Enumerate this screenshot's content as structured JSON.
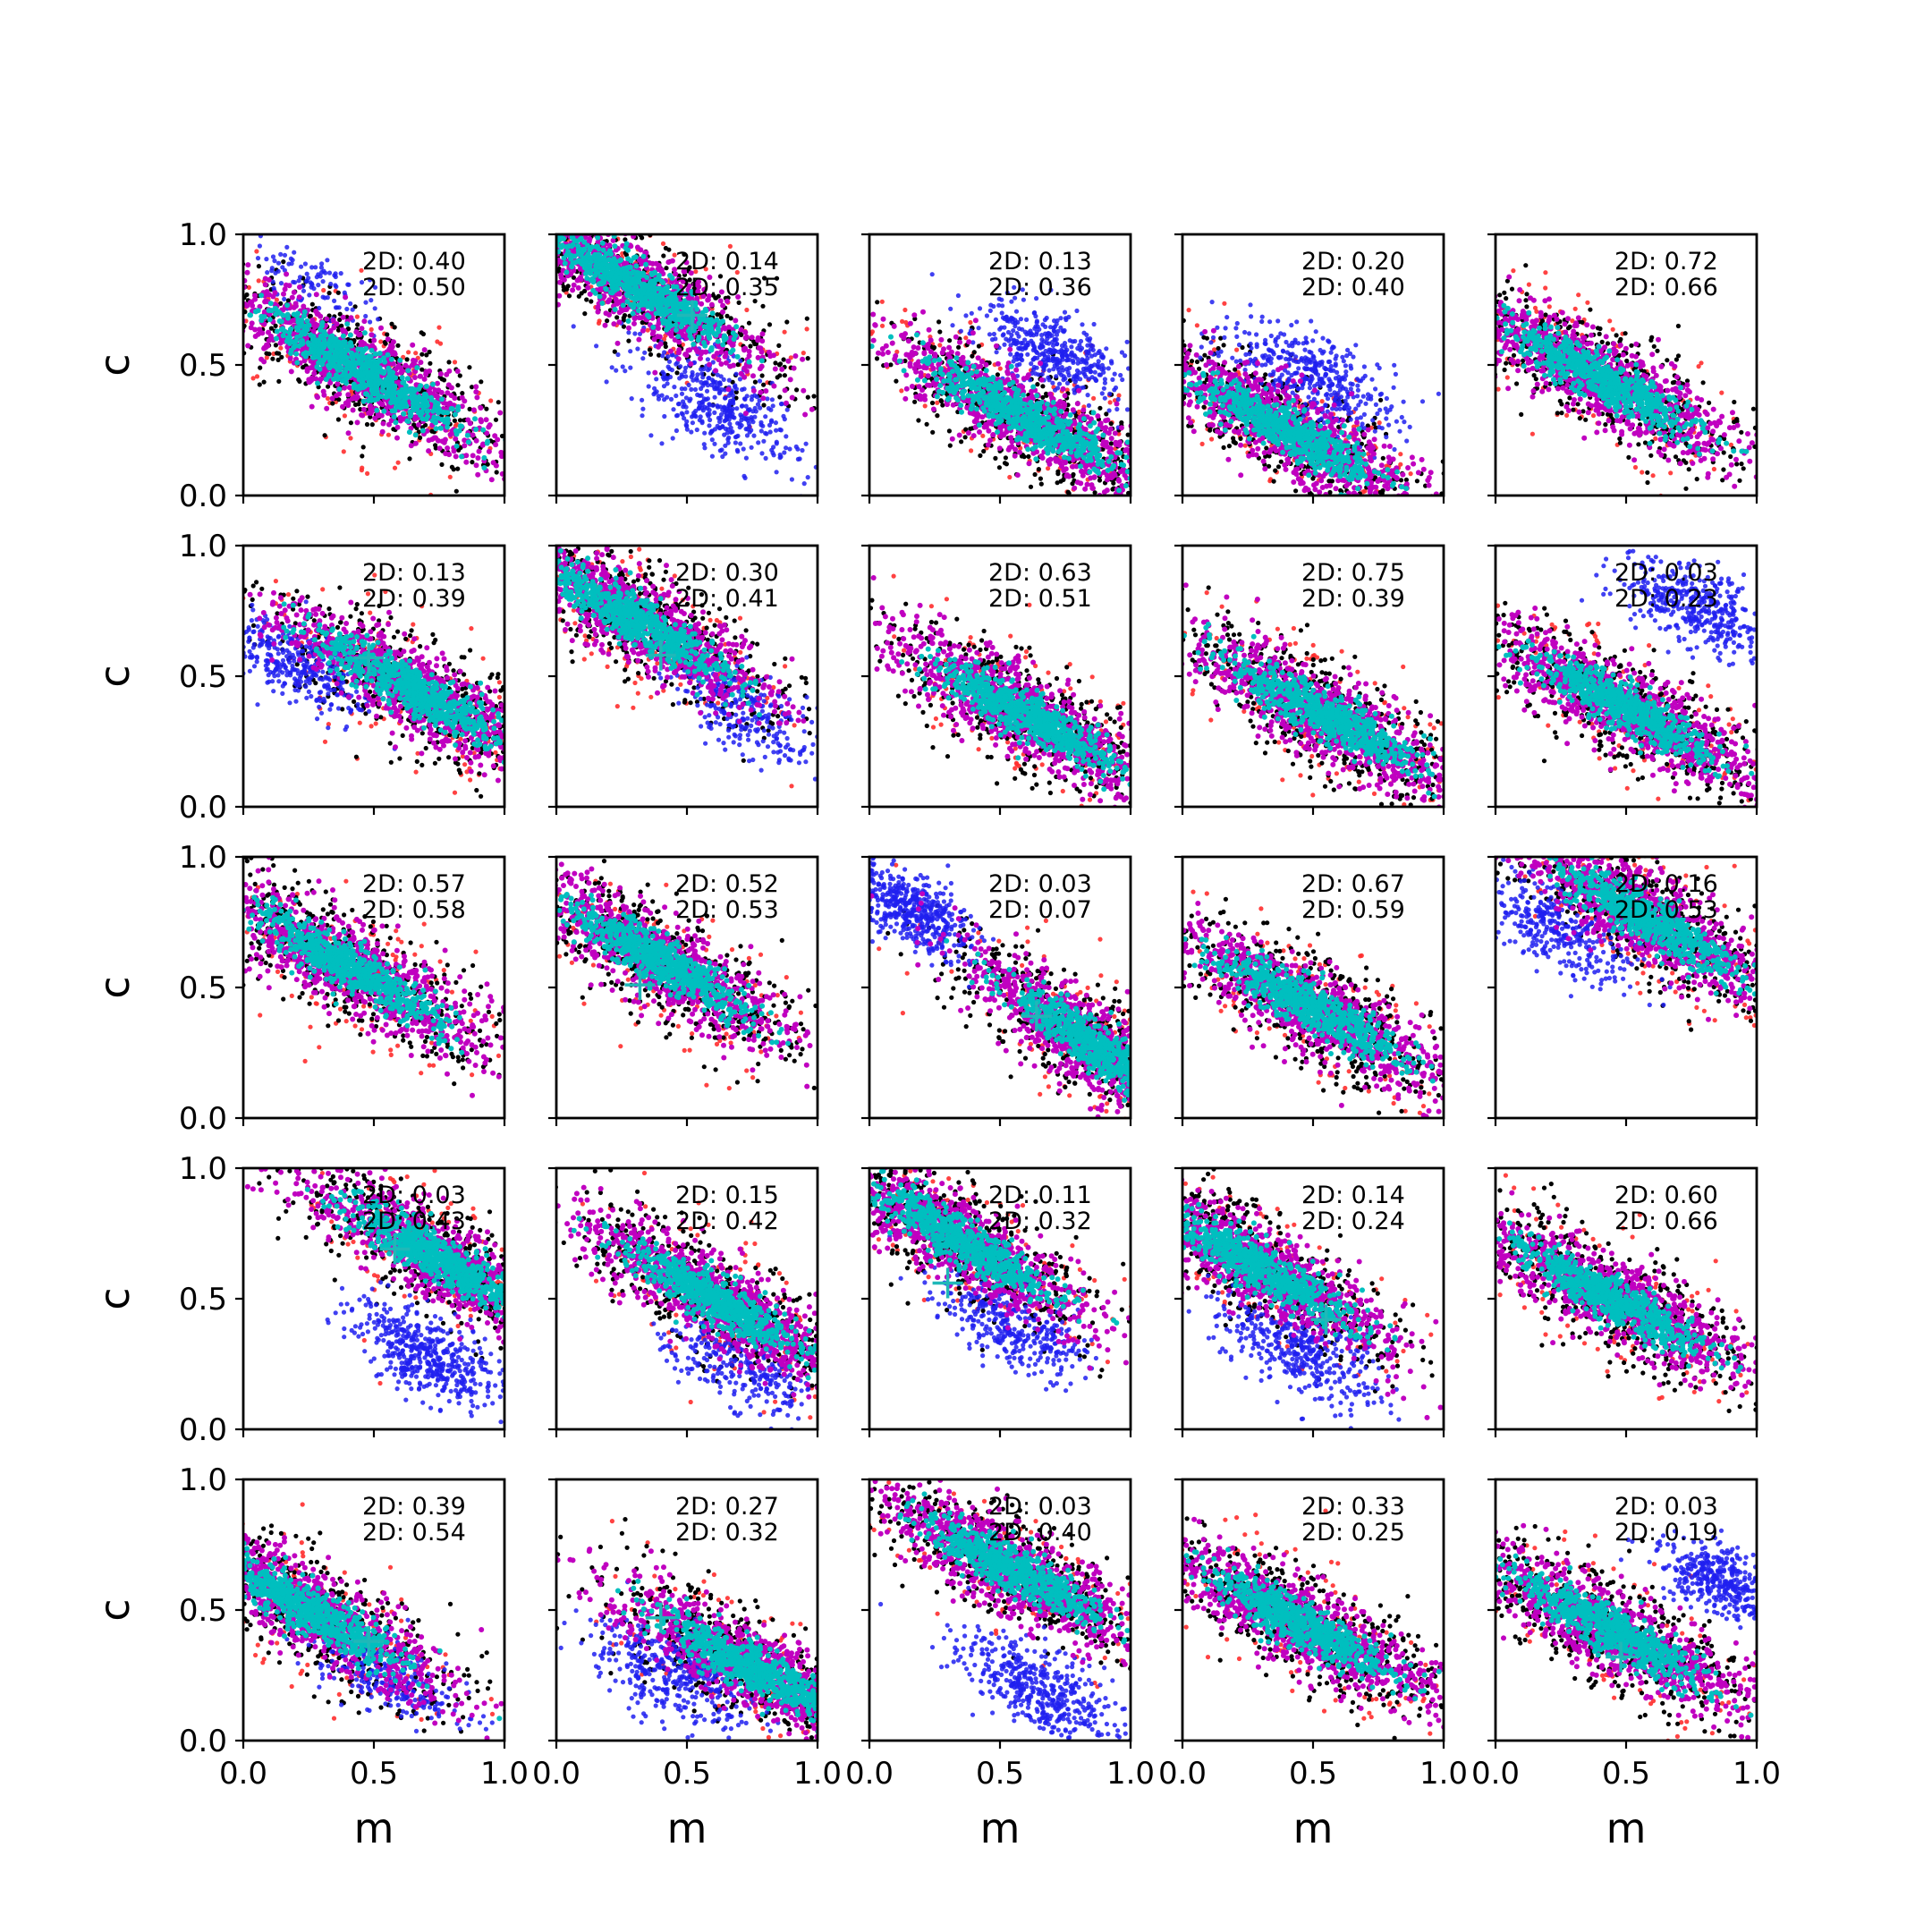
{
  "chart_data": {
    "type": "scatter",
    "layout": {
      "rows": 5,
      "cols": 5
    },
    "xlabel": "m",
    "ylabel": "c",
    "xlim": [
      0,
      1
    ],
    "ylim": [
      0,
      1
    ],
    "xticks": [
      "0.0",
      "0.5",
      "1.0"
    ],
    "yticks": [
      "0.0",
      "0.5",
      "1.0"
    ],
    "colors": {
      "red": "#ff2d2d",
      "black": "#000000",
      "blue": "#2020f0",
      "magenta": "#c000c0",
      "cyan": "#00bfbf",
      "marker": "#1fb8b8"
    },
    "note": "Each panel: scatter of (m, c) samples with a red outer layer, black band, magenta main cloud, cyan core, optional blue secondary cloud, and a cyan '+' marker.",
    "panels": [
      {
        "row": 0,
        "col": 0,
        "annot": [
          "2D: 0.40",
          "2D: 0.50"
        ],
        "main": {
          "cx": 0.45,
          "cy": 0.48,
          "slope": -0.6
        },
        "blue": {
          "cx": 0.3,
          "cy": 0.8,
          "n": 0.15,
          "spread": 0.06
        },
        "marker": null
      },
      {
        "row": 0,
        "col": 1,
        "annot": [
          "2D: 0.14",
          "2D: 0.35"
        ],
        "main": {
          "cx": 0.3,
          "cy": 0.8,
          "slope": -0.6
        },
        "blue": {
          "cx": 0.6,
          "cy": 0.35,
          "n": 0.6,
          "spread": 0.08
        },
        "marker": [
          0.52,
          0.69
        ]
      },
      {
        "row": 0,
        "col": 2,
        "annot": [
          "2D: 0.13",
          "2D: 0.36"
        ],
        "main": {
          "cx": 0.6,
          "cy": 0.3,
          "slope": -0.55
        },
        "blue": {
          "cx": 0.7,
          "cy": 0.55,
          "n": 0.6,
          "spread": 0.07
        },
        "marker": null
      },
      {
        "row": 0,
        "col": 3,
        "annot": [
          "2D: 0.20",
          "2D: 0.40"
        ],
        "main": {
          "cx": 0.4,
          "cy": 0.25,
          "slope": -0.55
        },
        "blue": {
          "cx": 0.5,
          "cy": 0.45,
          "n": 0.6,
          "spread": 0.08
        },
        "marker": null
      },
      {
        "row": 0,
        "col": 4,
        "annot": [
          "2D: 0.72",
          "2D: 0.66"
        ],
        "main": {
          "cx": 0.4,
          "cy": 0.45,
          "slope": -0.55
        },
        "blue": null,
        "marker": null
      },
      {
        "row": 1,
        "col": 0,
        "annot": [
          "2D: 0.13",
          "2D: 0.39"
        ],
        "main": {
          "cx": 0.65,
          "cy": 0.45,
          "slope": -0.55
        },
        "blue": {
          "cx": 0.2,
          "cy": 0.55,
          "n": 0.5,
          "spread": 0.07
        },
        "marker": [
          0.48,
          0.57
        ]
      },
      {
        "row": 1,
        "col": 1,
        "annot": [
          "2D: 0.30",
          "2D: 0.41"
        ],
        "main": {
          "cx": 0.3,
          "cy": 0.72,
          "slope": -0.6
        },
        "blue": {
          "cx": 0.75,
          "cy": 0.35,
          "n": 0.4,
          "spread": 0.07
        },
        "marker": [
          0.4,
          0.58
        ]
      },
      {
        "row": 1,
        "col": 2,
        "annot": [
          "2D: 0.63",
          "2D: 0.51"
        ],
        "main": {
          "cx": 0.6,
          "cy": 0.35,
          "slope": -0.55
        },
        "blue": null,
        "marker": null
      },
      {
        "row": 1,
        "col": 3,
        "annot": [
          "2D: 0.75",
          "2D: 0.39"
        ],
        "main": {
          "cx": 0.55,
          "cy": 0.35,
          "slope": -0.55
        },
        "blue": null,
        "marker": null
      },
      {
        "row": 1,
        "col": 4,
        "annot": [
          "2D: 0.03",
          "2D: 0.23"
        ],
        "main": {
          "cx": 0.5,
          "cy": 0.38,
          "slope": -0.55
        },
        "blue": {
          "cx": 0.8,
          "cy": 0.75,
          "n": 0.6,
          "spread": 0.07
        },
        "marker": null
      },
      {
        "row": 2,
        "col": 0,
        "annot": [
          "2D: 0.57",
          "2D: 0.58"
        ],
        "main": {
          "cx": 0.4,
          "cy": 0.58,
          "slope": -0.6
        },
        "blue": null,
        "marker": null
      },
      {
        "row": 2,
        "col": 1,
        "annot": [
          "2D: 0.52",
          "2D: 0.53"
        ],
        "main": {
          "cx": 0.4,
          "cy": 0.6,
          "slope": -0.6
        },
        "blue": null,
        "marker": [
          0.32,
          0.51
        ]
      },
      {
        "row": 2,
        "col": 2,
        "annot": [
          "2D: 0.03",
          "2D: 0.07"
        ],
        "main": {
          "cx": 0.85,
          "cy": 0.28,
          "slope": -0.7
        },
        "blue": {
          "cx": 0.15,
          "cy": 0.8,
          "n": 0.7,
          "spread": 0.06
        },
        "marker": [
          0.64,
          0.39
        ]
      },
      {
        "row": 2,
        "col": 3,
        "annot": [
          "2D: 0.67",
          "2D: 0.59"
        ],
        "main": {
          "cx": 0.5,
          "cy": 0.42,
          "slope": -0.55
        },
        "blue": null,
        "marker": null
      },
      {
        "row": 2,
        "col": 4,
        "annot": [
          "2D: 0.16",
          "2D: 0.53"
        ],
        "main": {
          "cx": 0.6,
          "cy": 0.75,
          "slope": -0.6
        },
        "blue": {
          "cx": 0.25,
          "cy": 0.72,
          "n": 0.5,
          "spread": 0.07
        },
        "marker": null
      },
      {
        "row": 3,
        "col": 0,
        "annot": [
          "2D: 0.03",
          "2D: 0.43"
        ],
        "main": {
          "cx": 0.75,
          "cy": 0.65,
          "slope": -0.6
        },
        "blue": {
          "cx": 0.7,
          "cy": 0.28,
          "n": 0.7,
          "spread": 0.07
        },
        "marker": [
          0.58,
          0.69
        ]
      },
      {
        "row": 3,
        "col": 1,
        "annot": [
          "2D: 0.15",
          "2D: 0.42"
        ],
        "main": {
          "cx": 0.6,
          "cy": 0.5,
          "slope": -0.6
        },
        "blue": {
          "cx": 0.7,
          "cy": 0.25,
          "n": 0.4,
          "spread": 0.07
        },
        "marker": null
      },
      {
        "row": 3,
        "col": 2,
        "annot": [
          "2D: 0.11",
          "2D: 0.32"
        ],
        "main": {
          "cx": 0.35,
          "cy": 0.72,
          "slope": -0.6
        },
        "blue": {
          "cx": 0.55,
          "cy": 0.4,
          "n": 0.5,
          "spread": 0.07
        },
        "marker": [
          0.3,
          0.56
        ]
      },
      {
        "row": 3,
        "col": 3,
        "annot": [
          "2D: 0.14",
          "2D: 0.24"
        ],
        "main": {
          "cx": 0.3,
          "cy": 0.62,
          "slope": -0.6
        },
        "blue": {
          "cx": 0.45,
          "cy": 0.3,
          "n": 0.6,
          "spread": 0.08
        },
        "marker": [
          0.55,
          0.42
        ]
      },
      {
        "row": 3,
        "col": 4,
        "annot": [
          "2D: 0.60",
          "2D: 0.66"
        ],
        "main": {
          "cx": 0.45,
          "cy": 0.5,
          "slope": -0.55
        },
        "blue": null,
        "marker": null
      },
      {
        "row": 4,
        "col": 0,
        "annot": [
          "2D: 0.39",
          "2D: 0.54"
        ],
        "main": {
          "cx": 0.25,
          "cy": 0.5,
          "slope": -0.6
        },
        "blue": {
          "cx": 0.55,
          "cy": 0.25,
          "n": 0.35,
          "spread": 0.07
        },
        "marker": [
          0.48,
          0.38
        ]
      },
      {
        "row": 4,
        "col": 1,
        "annot": [
          "2D: 0.27",
          "2D: 0.32"
        ],
        "main": {
          "cx": 0.75,
          "cy": 0.28,
          "slope": -0.55
        },
        "blue": {
          "cx": 0.45,
          "cy": 0.25,
          "n": 0.55,
          "spread": 0.08
        },
        "marker": [
          0.4,
          0.47
        ]
      },
      {
        "row": 4,
        "col": 2,
        "annot": [
          "2D: 0.03",
          "2D: 0.40"
        ],
        "main": {
          "cx": 0.55,
          "cy": 0.65,
          "slope": -0.55
        },
        "blue": {
          "cx": 0.65,
          "cy": 0.2,
          "n": 0.65,
          "spread": 0.07
        },
        "marker": null
      },
      {
        "row": 4,
        "col": 3,
        "annot": [
          "2D: 0.33",
          "2D: 0.25"
        ],
        "main": {
          "cx": 0.45,
          "cy": 0.45,
          "slope": -0.55
        },
        "blue": null,
        "marker": null
      },
      {
        "row": 4,
        "col": 4,
        "annot": [
          "2D: 0.03",
          "2D: 0.19"
        ],
        "main": {
          "cx": 0.45,
          "cy": 0.42,
          "slope": -0.55
        },
        "blue": {
          "cx": 0.88,
          "cy": 0.6,
          "n": 0.6,
          "spread": 0.06
        },
        "marker": [
          0.48,
          0.32
        ]
      }
    ]
  }
}
